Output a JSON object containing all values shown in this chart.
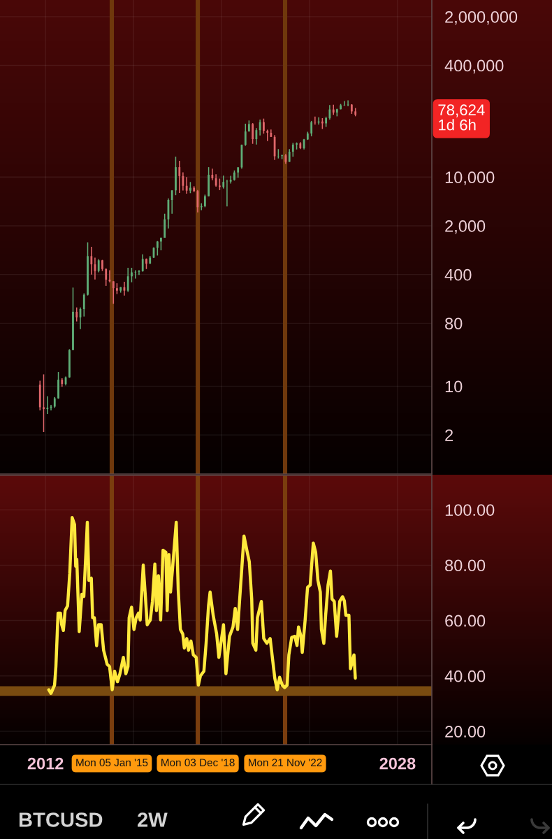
{
  "chart_data": [
    {
      "type": "candlestick",
      "title": "BTCUSD",
      "subtitle": "2W",
      "x": [
        "2011-10",
        "2011-12",
        "2012-02",
        "2012-04",
        "2012-06",
        "2012-08",
        "2012-10",
        "2012-12",
        "2013-02",
        "2013-04",
        "2013-06",
        "2013-08",
        "2013-10",
        "2013-12",
        "2014-02",
        "2014-04",
        "2014-06",
        "2014-08",
        "2014-10",
        "2014-12",
        "2015-02",
        "2015-04",
        "2015-06",
        "2015-08",
        "2015-10",
        "2015-12",
        "2016-02",
        "2016-04",
        "2016-06",
        "2016-08",
        "2016-10",
        "2016-12",
        "2017-02",
        "2017-04",
        "2017-06",
        "2017-08",
        "2017-10",
        "2017-12",
        "2018-02",
        "2018-04",
        "2018-06",
        "2018-08",
        "2018-10",
        "2018-12",
        "2019-02",
        "2019-04",
        "2019-06",
        "2019-08",
        "2019-10",
        "2019-12",
        "2020-02",
        "2020-04",
        "2020-06",
        "2020-08",
        "2020-10",
        "2020-12",
        "2021-02",
        "2021-04",
        "2021-06",
        "2021-08",
        "2021-10",
        "2021-12",
        "2022-02",
        "2022-04",
        "2022-06",
        "2022-08",
        "2022-10",
        "2022-12",
        "2023-02",
        "2023-04",
        "2023-06",
        "2023-08",
        "2023-10",
        "2023-12",
        "2024-02",
        "2024-04",
        "2024-06",
        "2024-08",
        "2024-10",
        "2024-12",
        "2025-02",
        "2025-04",
        "2025-06",
        "2025-08",
        "2025-10",
        "2025-12",
        "2026-02"
      ],
      "ohlc": [
        [
          10.5,
          12,
          4.5,
          5
        ],
        [
          5,
          14.8,
          2.2,
          4.7
        ],
        [
          4.7,
          7.2,
          4.0,
          4.9
        ],
        [
          4.9,
          5.4,
          4.5,
          5.1
        ],
        [
          5.1,
          7.0,
          4.9,
          6.7
        ],
        [
          6.7,
          16.0,
          6.6,
          12.4
        ],
        [
          12.4,
          13.0,
          9.8,
          10.8
        ],
        [
          10.8,
          13.8,
          10.3,
          13.4
        ],
        [
          13.4,
          34,
          13.2,
          33
        ],
        [
          33,
          260,
          33,
          117
        ],
        [
          117,
          135,
          85,
          97
        ],
        [
          97,
          135,
          66,
          128
        ],
        [
          128,
          215,
          100,
          205
        ],
        [
          205,
          1160,
          200,
          735
        ],
        [
          735,
          1000,
          400,
          560
        ],
        [
          560,
          700,
          340,
          450
        ],
        [
          450,
          665,
          430,
          640
        ],
        [
          640,
          650,
          450,
          480
        ],
        [
          480,
          490,
          275,
          338
        ],
        [
          338,
          460,
          310,
          320
        ],
        [
          320,
          320,
          152,
          255
        ],
        [
          255,
          300,
          210,
          235
        ],
        [
          235,
          265,
          220,
          263
        ],
        [
          263,
          315,
          200,
          235
        ],
        [
          235,
          500,
          225,
          377
        ],
        [
          377,
          500,
          310,
          430
        ],
        [
          430,
          460,
          350,
          437
        ],
        [
          437,
          465,
          395,
          445
        ],
        [
          445,
          780,
          440,
          670
        ],
        [
          670,
          680,
          480,
          573
        ],
        [
          573,
          740,
          570,
          700
        ],
        [
          700,
          980,
          690,
          965
        ],
        [
          965,
          1210,
          750,
          1190
        ],
        [
          1190,
          1360,
          890,
          1350
        ],
        [
          1350,
          2980,
          1350,
          2480
        ],
        [
          2480,
          4950,
          1830,
          4700
        ],
        [
          4700,
          6470,
          2970,
          6450
        ],
        [
          6450,
          19660,
          5500,
          13880
        ],
        [
          13880,
          17170,
          5920,
          10330
        ],
        [
          10330,
          11700,
          6420,
          7500
        ],
        [
          7500,
          10020,
          5780,
          6390
        ],
        [
          6390,
          8500,
          5880,
          7030
        ],
        [
          7030,
          7400,
          6100,
          6300
        ],
        [
          6300,
          6540,
          3120,
          3700
        ],
        [
          3700,
          4210,
          3350,
          3820
        ],
        [
          3820,
          5600,
          3700,
          5320
        ],
        [
          5320,
          13880,
          5300,
          10800
        ],
        [
          10800,
          13200,
          9000,
          9600
        ],
        [
          9600,
          10950,
          7300,
          7550
        ],
        [
          7550,
          9500,
          6500,
          7200
        ],
        [
          7200,
          10500,
          6850,
          8530
        ],
        [
          8530,
          9200,
          3800,
          8620
        ],
        [
          8620,
          10400,
          8100,
          9140
        ],
        [
          9140,
          12470,
          8900,
          11650
        ],
        [
          11650,
          13900,
          9800,
          13780
        ],
        [
          13780,
          29300,
          13200,
          29000
        ],
        [
          29000,
          58350,
          28100,
          45200
        ],
        [
          45200,
          64900,
          44900,
          57700
        ],
        [
          57700,
          59500,
          30000,
          35000
        ],
        [
          35000,
          50500,
          29300,
          47100
        ],
        [
          47100,
          67000,
          39600,
          61300
        ],
        [
          61300,
          69000,
          42000,
          46200
        ],
        [
          46200,
          47900,
          32900,
          43200
        ],
        [
          43200,
          48200,
          37700,
          37700
        ],
        [
          37700,
          40000,
          17600,
          19900
        ],
        [
          19900,
          25200,
          18500,
          20050
        ],
        [
          20050,
          21000,
          18100,
          20500
        ],
        [
          20500,
          21450,
          15500,
          16550
        ],
        [
          16550,
          25250,
          16500,
          23150
        ],
        [
          23150,
          31000,
          19600,
          29250
        ],
        [
          29250,
          31400,
          24900,
          30450
        ],
        [
          30450,
          31800,
          25200,
          25950
        ],
        [
          25950,
          35200,
          24900,
          34650
        ],
        [
          34650,
          44700,
          34100,
          42280
        ],
        [
          42280,
          64000,
          38500,
          61200
        ],
        [
          61200,
          73800,
          56500,
          60650
        ],
        [
          60650,
          72000,
          56500,
          62700
        ],
        [
          62700,
          70000,
          49000,
          58970
        ],
        [
          58970,
          73600,
          52500,
          70200
        ],
        [
          70200,
          108300,
          66800,
          93400
        ],
        [
          93400,
          109400,
          78200,
          84400
        ],
        [
          84400,
          95700,
          74400,
          94200
        ],
        [
          94200,
          112000,
          93400,
          107100
        ],
        [
          107100,
          123200,
          105300,
          108200
        ],
        [
          108200,
          126200,
          103500,
          109600
        ],
        [
          109600,
          111200,
          80600,
          87500
        ],
        [
          87500,
          97900,
          74500,
          78624
        ]
      ],
      "colors": [
        "#e0676b",
        "#e0676b",
        "#5fae77",
        "#5fae77",
        "#5fae77",
        "#5fae77",
        "#e0676b",
        "#5fae77",
        "#5fae77",
        "#5fae77",
        "#e0676b",
        "#5fae77",
        "#5fae77",
        "#5fae77",
        "#e0676b",
        "#e0676b",
        "#5fae77",
        "#e0676b",
        "#e0676b",
        "#e0676b",
        "#e0676b",
        "#e0676b",
        "#5fae77",
        "#e0676b",
        "#5fae77",
        "#5fae77",
        "#5fae77",
        "#5fae77",
        "#5fae77",
        "#e0676b",
        "#5fae77",
        "#5fae77",
        "#5fae77",
        "#5fae77",
        "#5fae77",
        "#5fae77",
        "#5fae77",
        "#5fae77",
        "#e0676b",
        "#e0676b",
        "#e0676b",
        "#5fae77",
        "#e0676b",
        "#e0676b",
        "#5fae77",
        "#5fae77",
        "#5fae77",
        "#e0676b",
        "#e0676b",
        "#e0676b",
        "#5fae77",
        "#5fae77",
        "#5fae77",
        "#5fae77",
        "#5fae77",
        "#5fae77",
        "#5fae77",
        "#5fae77",
        "#e0676b",
        "#5fae77",
        "#5fae77",
        "#e0676b",
        "#e0676b",
        "#e0676b",
        "#e0676b",
        "#5fae77",
        "#5fae77",
        "#e0676b",
        "#5fae77",
        "#5fae77",
        "#5fae77",
        "#e0676b",
        "#5fae77",
        "#5fae77",
        "#5fae77",
        "#e0676b",
        "#5fae77",
        "#e0676b",
        "#5fae77",
        "#5fae77",
        "#e0676b",
        "#5fae77",
        "#5fae77",
        "#5fae77",
        "#5fae77",
        "#e0676b",
        "#e0676b"
      ],
      "log": true,
      "xlim": [
        "2009-12-06",
        "2029-07-23"
      ],
      "xticks": [
        {
          "value": "2012",
          "label": null
        },
        {
          "value": "2016",
          "label": null
        },
        {
          "value": "2020",
          "label": null
        },
        {
          "value": "2024",
          "label": null
        },
        {
          "value": "2028",
          "label": null
        }
      ],
      "ylim": [
        0.55,
        3470000
      ],
      "yticks": [
        2,
        10,
        80,
        400,
        {
          "value": 2000,
          "label": "2,000"
        },
        {
          "value": 10000,
          "label": "10,000"
        },
        {
          "value": 400000,
          "label": "400,000"
        },
        {
          "value": 2000000,
          "label": "2,000,000"
        }
      ],
      "grid": true,
      "tick_labels": "y",
      "ref_lines": [
        {
          "axis": "x",
          "value": "2015-01-05",
          "color": "#6f380c"
        },
        {
          "axis": "x",
          "value": "2018-12-03",
          "color": "#6f380c"
        },
        {
          "axis": "x",
          "value": "2022-11-21",
          "color": "#6f380c"
        }
      ],
      "annotations": [
        "78,624\n1d 6h"
      ]
    },
    {
      "type": "line",
      "x": [
        "2012-02-24",
        "2012-04-01",
        "2012-05-30",
        "2012-06-21",
        "2012-07-27",
        "2012-09-05",
        "2012-09-24",
        "2012-10-23",
        "2012-11-21",
        "2013-01-01",
        "2013-02-06",
        "2013-03-18",
        "2013-04-27",
        "2013-05-16",
        "2013-06-03",
        "2013-07-13",
        "2013-08-26",
        "2013-09-28",
        "2013-10-16",
        "2013-11-25",
        "2013-12-21",
        "2014-01-30",
        "2014-02-21",
        "2014-03-22",
        "2014-04-28",
        "2014-05-31",
        "2014-07-13",
        "2014-08-22",
        "2014-10-20",
        "2014-11-29",
        "2015-01-12",
        "2015-02-21",
        "2015-04-10",
        "2015-05-20",
        "2015-07-16",
        "2015-08-26",
        "2015-10-01",
        "2015-10-20",
        "2015-11-29",
        "2016-01-08",
        "2016-02-14",
        "2016-03-25",
        "2016-04-20",
        "2016-06-10",
        "2016-07-16",
        "2016-08-15",
        "2016-10-05",
        "2016-11-10",
        "2016-12-20",
        "2017-01-15",
        "2017-02-17",
        "2017-03-26",
        "2017-05-05",
        "2017-06-21",
        "2017-07-13",
        "2017-08-11",
        "2017-09-06",
        "2017-10-09",
        "2017-12-10",
        "2018-01-12",
        "2018-02-17",
        "2018-03-29",
        "2018-04-23",
        "2018-06-03",
        "2018-07-02",
        "2018-08-11",
        "2018-09-20",
        "2018-11-06",
        "2018-12-13",
        "2019-01-15",
        "2019-03-14",
        "2019-04-20",
        "2019-05-30",
        "2019-06-25",
        "2019-08-15",
        "2019-10-12",
        "2019-11-18",
        "2020-02-03",
        "2020-03-14",
        "2020-05-12",
        "2020-07-09",
        "2020-08-15",
        "2020-09-24",
        "2020-10-31",
        "2021-01-08",
        "2021-02-24",
        "2021-04-06",
        "2021-05-16",
        "2021-06-03",
        "2021-07-24",
        "2021-08-19",
        "2021-10-23",
        "2021-12-02",
        "2022-01-23",
        "2022-03-18",
        "2022-04-28",
        "2022-06-03",
        "2022-07-13",
        "2022-08-22",
        "2022-10-05",
        "2022-11-14",
        "2022-12-25",
        "2023-01-23",
        "2023-03-11",
        "2023-05-01",
        "2023-06-07",
        "2023-07-02",
        "2023-08-11",
        "2023-09-02",
        "2023-10-20",
        "2023-11-29",
        "2024-01-12",
        "2024-03-03",
        "2024-04-12",
        "2024-05-19",
        "2024-06-28",
        "2024-07-16",
        "2024-08-25",
        "2024-09-24",
        "2024-11-03",
        "2024-12-13",
        "2025-01-08",
        "2025-02-14",
        "2025-03-26",
        "2025-05-16",
        "2025-07-02",
        "2025-08-01",
        "2025-08-26",
        "2025-10-16",
        "2025-11-10",
        "2026-01-08",
        "2026-01-30"
      ],
      "series": [
        {
          "color": "#ffe93d",
          "values": [
            35.0,
            33.7,
            36.7,
            43.4,
            62.7,
            62.7,
            58.6,
            56.4,
            63.6,
            65.3,
            77.0,
            97.2,
            94.7,
            79.6,
            82.1,
            56.0,
            69.5,
            68.7,
            77.0,
            95.5,
            74.5,
            75.3,
            61.0,
            61.0,
            50.9,
            58.5,
            58.5,
            49.3,
            44.2,
            43.4,
            35.0,
            41.7,
            37.9,
            40.8,
            46.7,
            40.8,
            43.4,
            61.0,
            64.8,
            56.8,
            61.0,
            62.7,
            60.2,
            80.0,
            68.6,
            58.5,
            60.2,
            66.9,
            80.4,
            63.6,
            76.2,
            60.2,
            85.4,
            84.6,
            63.6,
            83.8,
            70.3,
            78.7,
            95.5,
            71.1,
            56.8,
            55.1,
            50.1,
            53.5,
            49.3,
            52.6,
            47.6,
            46.7,
            36.7,
            40.0,
            41.7,
            51.8,
            65.3,
            70.3,
            61.9,
            55.1,
            46.7,
            58.5,
            40.8,
            54.3,
            57.7,
            64.4,
            56.8,
            68.6,
            90.5,
            85.4,
            81.2,
            67.8,
            51.8,
            49.3,
            61.0,
            66.9,
            53.5,
            51.8,
            53.5,
            45.9,
            39.2,
            35.0,
            39.5,
            36.7,
            35.8,
            36.7,
            47.6,
            53.9,
            54.3,
            51.0,
            57.7,
            54.3,
            48.5,
            60.2,
            72.0,
            72.8,
            88.0,
            84.6,
            74.5,
            70.3,
            56.8,
            51.8,
            61.9,
            72.8,
            77.9,
            67.8,
            66.9,
            54.3,
            66.9,
            68.6,
            67.1,
            61.9,
            61.9,
            42.6,
            47.6,
            39.2
          ]
        }
      ],
      "xlim": [
        "2009-12-06",
        "2029-07-23"
      ],
      "xticks": [
        {
          "value": "2012",
          "label": "2012"
        },
        {
          "value": "2016",
          "label": null
        },
        {
          "value": "2020",
          "label": null
        },
        {
          "value": "2024",
          "label": null
        },
        {
          "value": "2028",
          "label": "2028"
        }
      ],
      "ylim": [
        15.2,
        112.4
      ],
      "yticks": [
        {
          "value": 20,
          "label": "20.00"
        },
        {
          "value": 40,
          "label": "40.00"
        },
        {
          "value": 60,
          "label": "60.00"
        },
        {
          "value": 80,
          "label": "80.00"
        },
        {
          "value": 100,
          "label": "100.00"
        }
      ],
      "grid": true,
      "ref_lines": [
        {
          "axis": "x",
          "value": "2015-01-05",
          "label": "Mon 05 Jan '15",
          "color": "#7a3d0e"
        },
        {
          "axis": "x",
          "value": "2018-12-03",
          "label": "Mon 03 Dec '18",
          "color": "#7a3d0e"
        },
        {
          "axis": "x",
          "value": "2022-11-21",
          "label": "Mon 21 Nov '22",
          "color": "#7a3d0e"
        }
      ],
      "bands": [
        {
          "axis": "y",
          "from": 32.8,
          "to": 36.3,
          "color": "#7a4b10"
        }
      ]
    }
  ]
}
